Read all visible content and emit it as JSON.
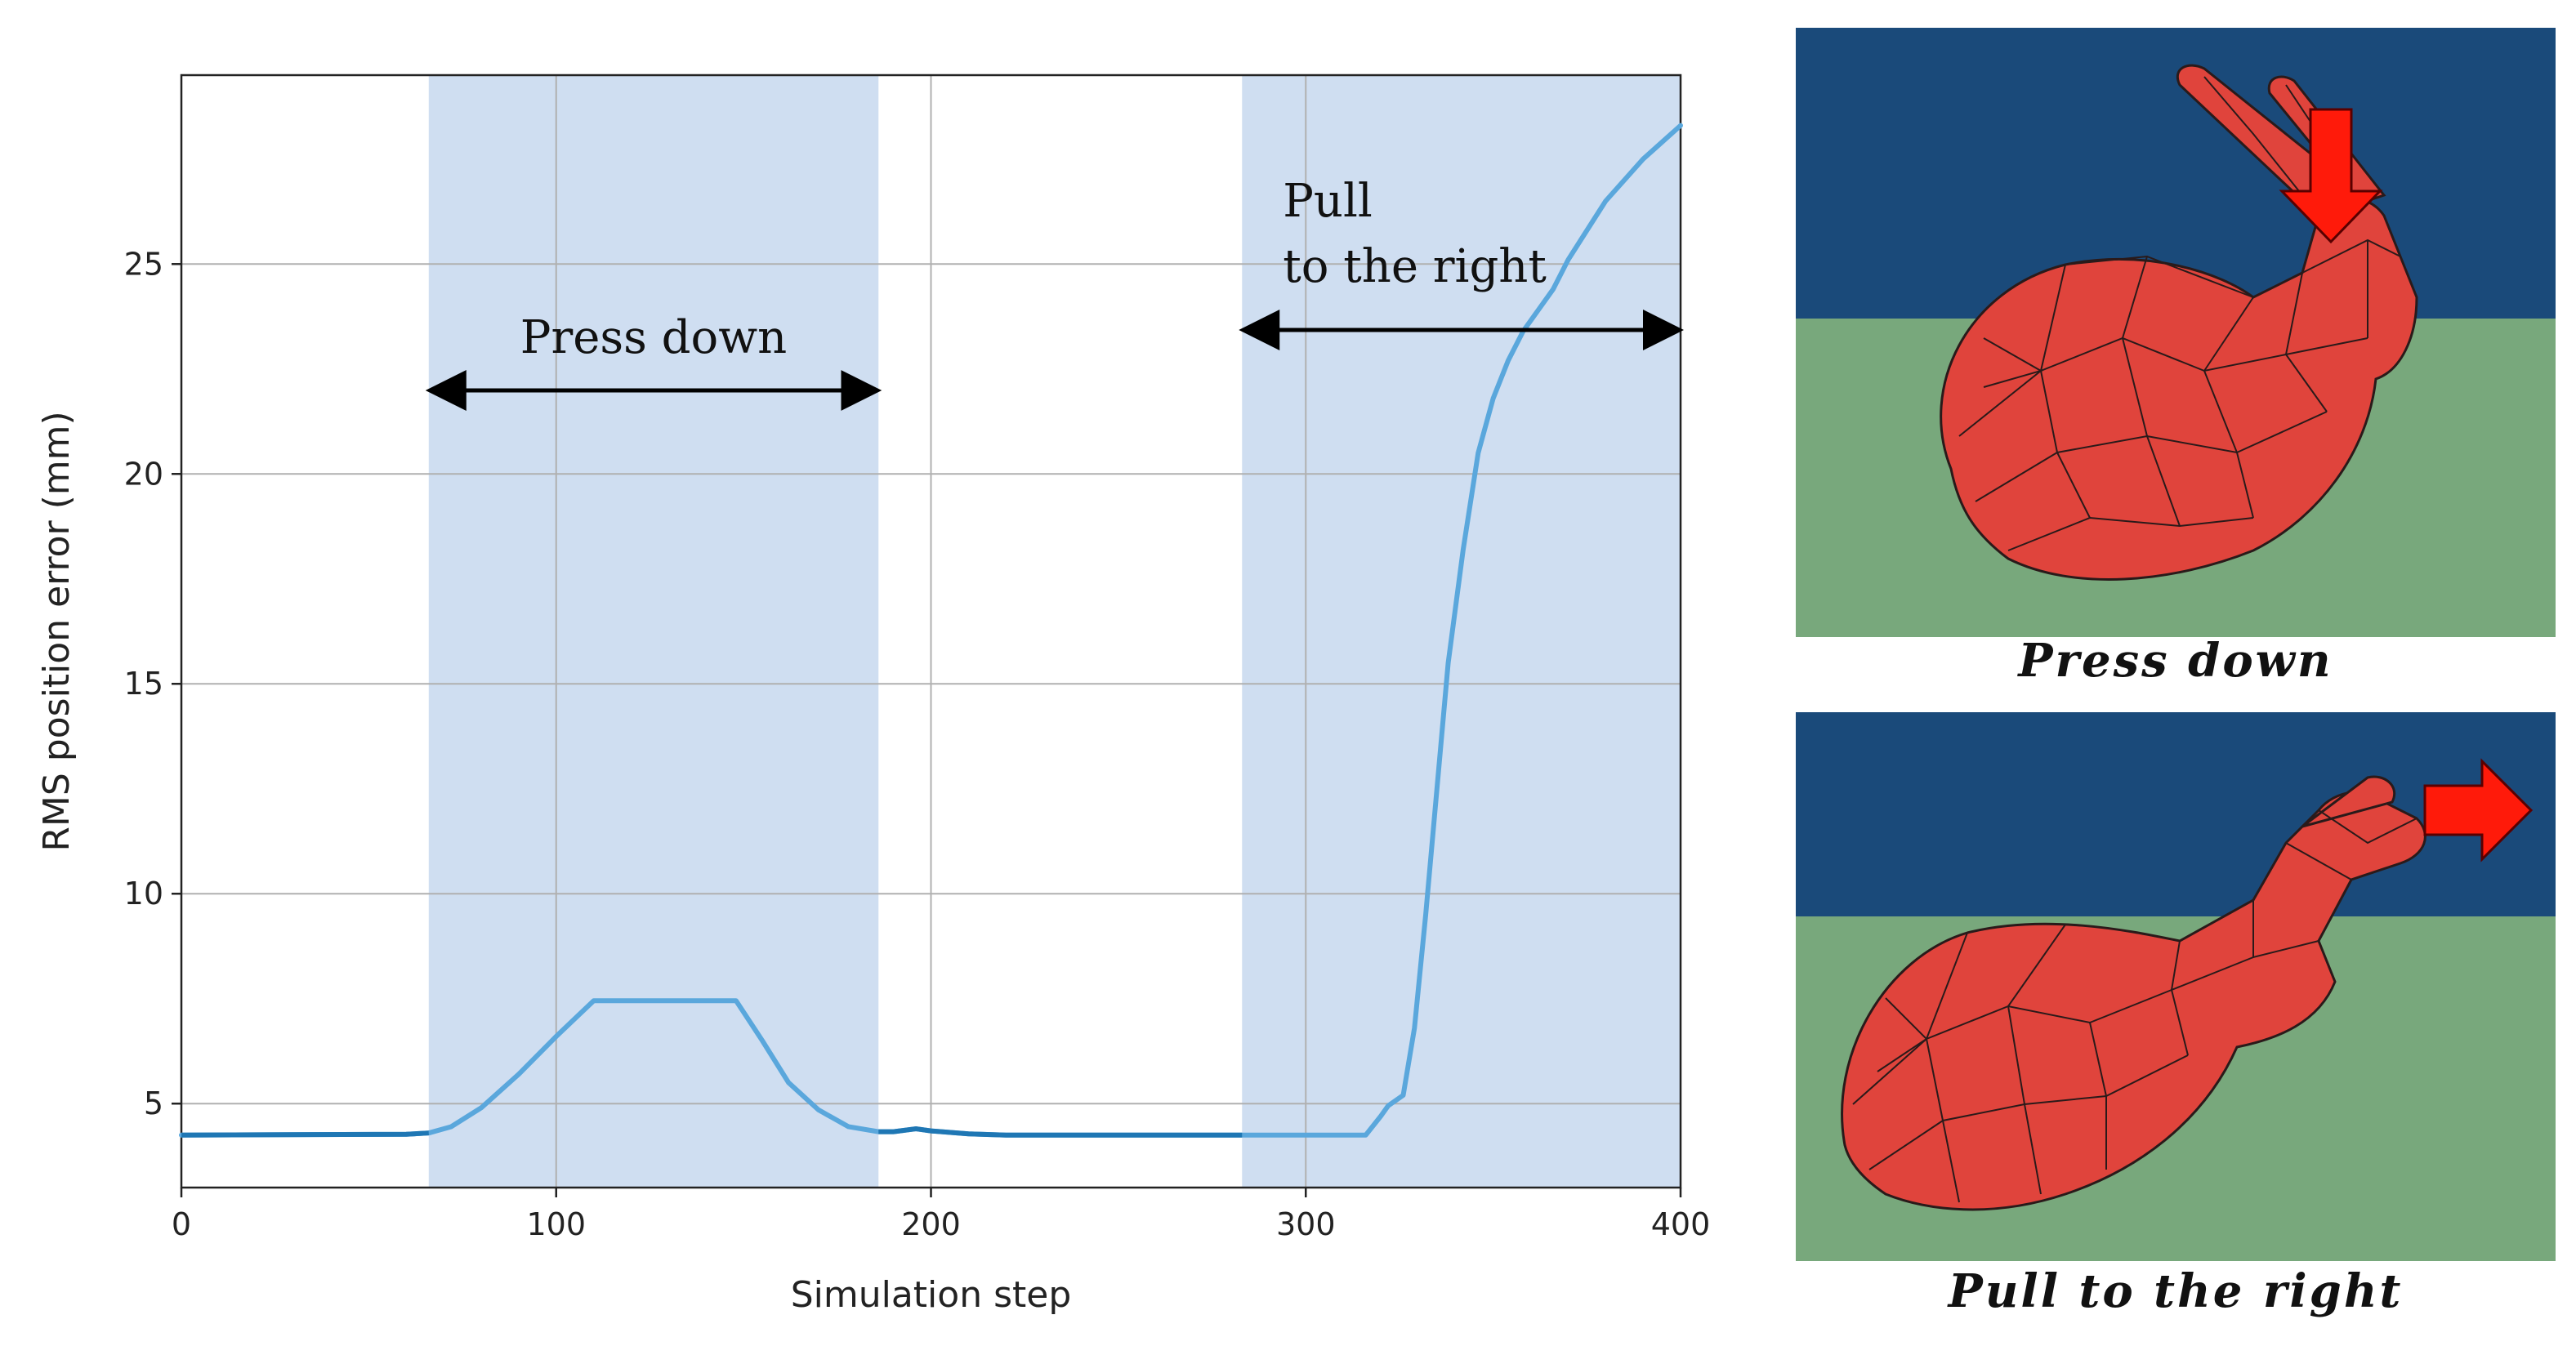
{
  "chart_data": {
    "type": "line",
    "xlabel": "Simulation step",
    "ylabel": "RMS position error (mm)",
    "xlim": [
      0,
      400
    ],
    "ylim": [
      3,
      29.5
    ],
    "xticks": [
      0,
      100,
      200,
      300,
      400
    ],
    "yticks": [
      5,
      10,
      15,
      20,
      25
    ],
    "grid": true,
    "shaded_regions": [
      {
        "x_start": 66,
        "x_end": 186,
        "label": "Press down"
      },
      {
        "x_start": 283,
        "x_end": 400,
        "label_lines": [
          "Pull",
          "to the right"
        ]
      }
    ],
    "series": [
      {
        "color": "#5aa7dc",
        "x": [
          0,
          60,
          66,
          72,
          80,
          90,
          100,
          110,
          120,
          130,
          140,
          148,
          155,
          162,
          170,
          178,
          186,
          190,
          196,
          200,
          210,
          220,
          250,
          283,
          300,
          316,
          320,
          322,
          326,
          329,
          332,
          335,
          338,
          342,
          346,
          350,
          354,
          358,
          362,
          366,
          370,
          375,
          380,
          390,
          400
        ],
        "y": [
          4.25,
          4.27,
          4.3,
          4.45,
          4.9,
          5.7,
          6.6,
          7.45,
          7.45,
          7.45,
          7.45,
          7.45,
          6.5,
          5.5,
          4.85,
          4.45,
          4.33,
          4.33,
          4.4,
          4.35,
          4.28,
          4.25,
          4.25,
          4.25,
          4.25,
          4.25,
          4.7,
          4.95,
          5.2,
          6.8,
          9.5,
          12.5,
          15.5,
          18.2,
          20.5,
          21.8,
          22.7,
          23.4,
          23.9,
          24.4,
          25.1,
          25.8,
          26.5,
          27.5,
          28.3
        ]
      }
    ]
  },
  "colors": {
    "shade": "#cfdef1",
    "line": "#5aa7dc",
    "line_flat": "#1f77b4",
    "sky": "#1a4a7a",
    "ground": "#78a87c",
    "arrow": "#ff1a0a",
    "bunny": "#e0443c"
  },
  "panels": {
    "top_caption": "Press down",
    "bottom_caption": "Pull to the right",
    "top_arrow_icon": "down-arrow-icon",
    "bottom_arrow_icon": "right-arrow-icon",
    "mesh_icon": "bunny-mesh-icon"
  }
}
